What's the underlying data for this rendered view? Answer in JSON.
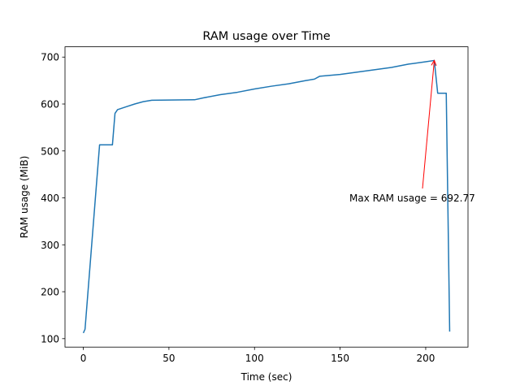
{
  "chart_data": {
    "type": "line",
    "title": "RAM usage over Time",
    "x_label": "Time (sec)",
    "y_label": "RAM usage (MiB)",
    "x": [
      0,
      1,
      9.5,
      17,
      18.5,
      20,
      25,
      30,
      35,
      40,
      50,
      65,
      70,
      80,
      90,
      100,
      110,
      120,
      130,
      135,
      138,
      150,
      160,
      170,
      180,
      190,
      200,
      205,
      207,
      212,
      214
    ],
    "values": [
      112,
      120,
      513,
      513,
      580,
      588,
      594,
      600,
      605,
      608,
      608.5,
      609,
      613,
      620,
      625,
      632,
      638,
      643,
      650,
      653,
      659,
      663,
      668,
      673,
      678,
      685,
      690,
      692.77,
      623,
      623,
      115
    ],
    "color": "#1f77b4",
    "annotation": "Max RAM usage = 692.77",
    "annotation_color": "#ff0000",
    "xlim": [
      -10.7,
      224.7
    ],
    "xticks": [
      0,
      50,
      100,
      150,
      200
    ],
    "ylim": [
      82.0,
      721.9
    ],
    "yticks": [
      100,
      200,
      300,
      400,
      500,
      600,
      700
    ]
  }
}
